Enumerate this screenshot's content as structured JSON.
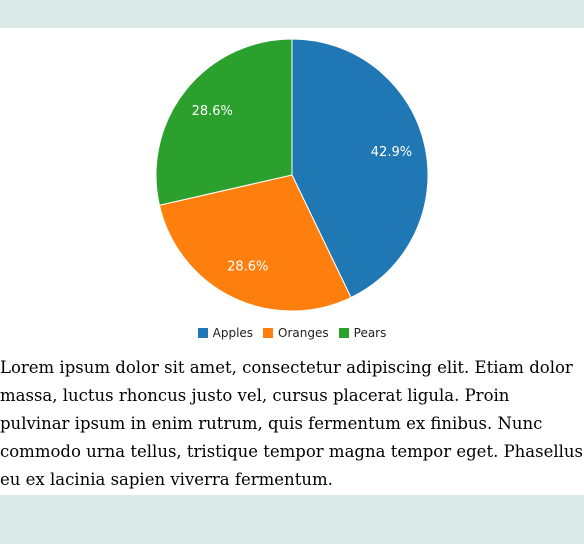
{
  "chart_data": {
    "type": "pie",
    "categories": [
      "Apples",
      "Oranges",
      "Pears"
    ],
    "values": [
      42.9,
      28.6,
      28.6
    ],
    "labels": [
      "42.9%",
      "28.6%",
      "28.6%"
    ],
    "colors": [
      "#1f77b4",
      "#ff7f0e",
      "#2ca02c"
    ],
    "legend_position": "bottom"
  },
  "legend": {
    "items": [
      {
        "label": "Apples",
        "color": "#1f77b4"
      },
      {
        "label": "Oranges",
        "color": "#ff7f0e"
      },
      {
        "label": "Pears",
        "color": "#2ca02c"
      }
    ]
  },
  "body": {
    "paragraph": "Lorem ipsum dolor sit amet, consectetur adipiscing elit. Etiam dolor massa, luctus rhoncus justo vel, cursus placerat ligula. Proin pulvinar ipsum in enim rutrum, quis fermentum ex finibus. Nunc commodo urna tellus, tristique tempor magna tempor eget. Phasellus eu ex lacinia sapien viverra fermentum."
  }
}
